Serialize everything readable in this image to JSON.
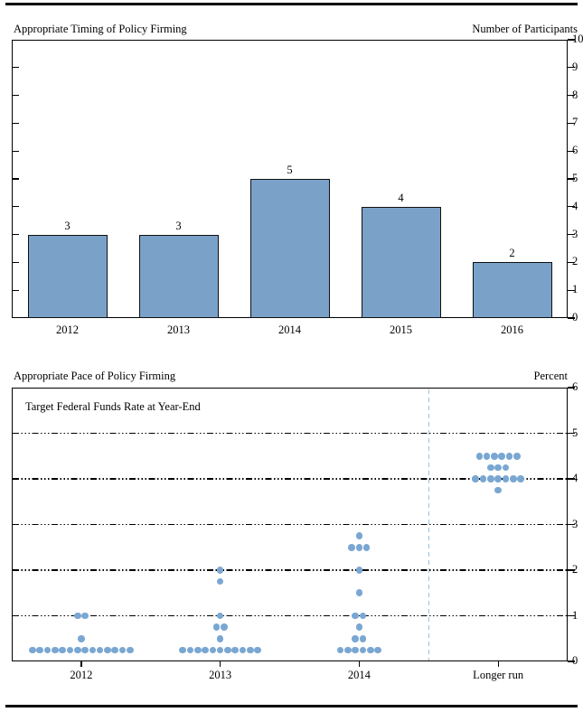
{
  "chart_data": [
    {
      "type": "bar",
      "title": "Appropriate Timing of Policy Firming",
      "axis_label": "Number of Participants",
      "categories": [
        "2012",
        "2013",
        "2014",
        "2015",
        "2016"
      ],
      "values": [
        3,
        3,
        5,
        4,
        2
      ],
      "bar_labels": [
        "3",
        "3",
        "5",
        "4",
        "2"
      ],
      "ylim": [
        0,
        10
      ],
      "yticks": [
        0,
        1,
        2,
        3,
        4,
        5,
        6,
        7,
        8,
        9,
        10
      ],
      "grid": false,
      "legend": "none",
      "bar_color": "#7aa2c9",
      "bar_border_color": "#101010"
    },
    {
      "type": "scatter",
      "title": "Appropriate Pace of Policy Firming",
      "axis_label": "Percent",
      "annotation": "Target Federal Funds Rate at Year-End",
      "categories": [
        "2012",
        "2013",
        "2014",
        "Longer run"
      ],
      "ylim": [
        0,
        6
      ],
      "yticks": [
        0,
        1,
        2,
        3,
        4,
        5,
        6
      ],
      "gridlines": [
        1,
        2,
        3,
        4,
        5
      ],
      "grid_style": "dash-dot-dot",
      "dot_color": "#7aa7d2",
      "separator_color": "#9fc0dc",
      "separator_between": [
        "2014",
        "Longer run"
      ],
      "distributions": [
        {
          "category": "2012",
          "points": [
            {
              "rate": 0.25,
              "count": 14
            },
            {
              "rate": 0.5,
              "count": 1
            },
            {
              "rate": 1.0,
              "count": 2
            }
          ]
        },
        {
          "category": "2013",
          "points": [
            {
              "rate": 0.25,
              "count": 11
            },
            {
              "rate": 0.5,
              "count": 1
            },
            {
              "rate": 0.75,
              "count": 2
            },
            {
              "rate": 1.0,
              "count": 1
            },
            {
              "rate": 1.75,
              "count": 1
            },
            {
              "rate": 2.0,
              "count": 1
            }
          ]
        },
        {
          "category": "2014",
          "points": [
            {
              "rate": 0.25,
              "count": 6
            },
            {
              "rate": 0.5,
              "count": 2
            },
            {
              "rate": 0.75,
              "count": 1
            },
            {
              "rate": 1.0,
              "count": 2
            },
            {
              "rate": 1.5,
              "count": 1
            },
            {
              "rate": 2.0,
              "count": 1
            },
            {
              "rate": 2.5,
              "count": 3
            },
            {
              "rate": 2.75,
              "count": 1
            }
          ]
        },
        {
          "category": "Longer run",
          "points": [
            {
              "rate": 3.75,
              "count": 1
            },
            {
              "rate": 4.0,
              "count": 7
            },
            {
              "rate": 4.25,
              "count": 3
            },
            {
              "rate": 4.5,
              "count": 6
            }
          ]
        }
      ]
    }
  ]
}
